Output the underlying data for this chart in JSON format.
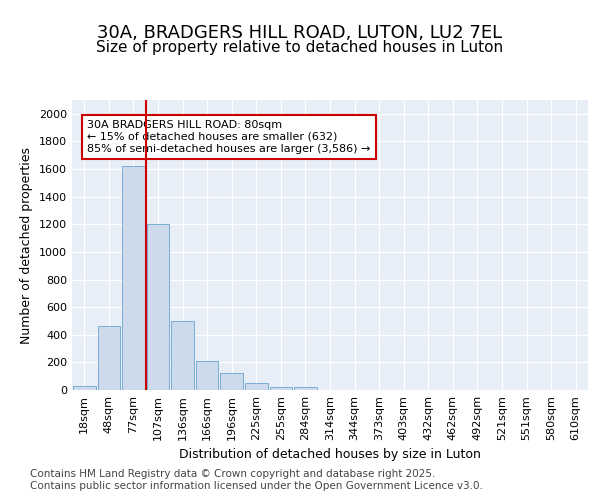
{
  "title1": "30A, BRADGERS HILL ROAD, LUTON, LU2 7EL",
  "title2": "Size of property relative to detached houses in Luton",
  "xlabel": "Distribution of detached houses by size in Luton",
  "ylabel": "Number of detached properties",
  "bar_labels": [
    "18sqm",
    "48sqm",
    "77sqm",
    "107sqm",
    "136sqm",
    "166sqm",
    "196sqm",
    "225sqm",
    "255sqm",
    "284sqm",
    "314sqm",
    "344sqm",
    "373sqm",
    "403sqm",
    "432sqm",
    "462sqm",
    "492sqm",
    "521sqm",
    "551sqm",
    "580sqm",
    "610sqm"
  ],
  "bar_values": [
    30,
    460,
    1620,
    1200,
    500,
    210,
    120,
    50,
    25,
    20,
    0,
    0,
    0,
    0,
    0,
    0,
    0,
    0,
    0,
    0,
    0
  ],
  "bar_color": "#cddaeb",
  "bar_edge_color": "#7aadd4",
  "vline_x": 2.5,
  "vline_color": "#cc0000",
  "annotation_text": "30A BRADGERS HILL ROAD: 80sqm\n← 15% of detached houses are smaller (632)\n85% of semi-detached houses are larger (3,586) →",
  "annotation_box_color": "#ffffff",
  "annotation_box_edge": "#cc0000",
  "ylim": [
    0,
    2100
  ],
  "yticks": [
    0,
    200,
    400,
    600,
    800,
    1000,
    1200,
    1400,
    1600,
    1800,
    2000
  ],
  "bg_color": "#ffffff",
  "plot_bg_color": "#e8eef8",
  "footer_text": "Contains HM Land Registry data © Crown copyright and database right 2025.\nContains public sector information licensed under the Open Government Licence v3.0.",
  "title_fontsize": 13,
  "subtitle_fontsize": 11,
  "grid_color": "#ffffff",
  "tick_label_fontsize": 8,
  "ylabel_fontsize": 9,
  "xlabel_fontsize": 9,
  "footer_fontsize": 7.5,
  "annotation_fontsize": 8
}
